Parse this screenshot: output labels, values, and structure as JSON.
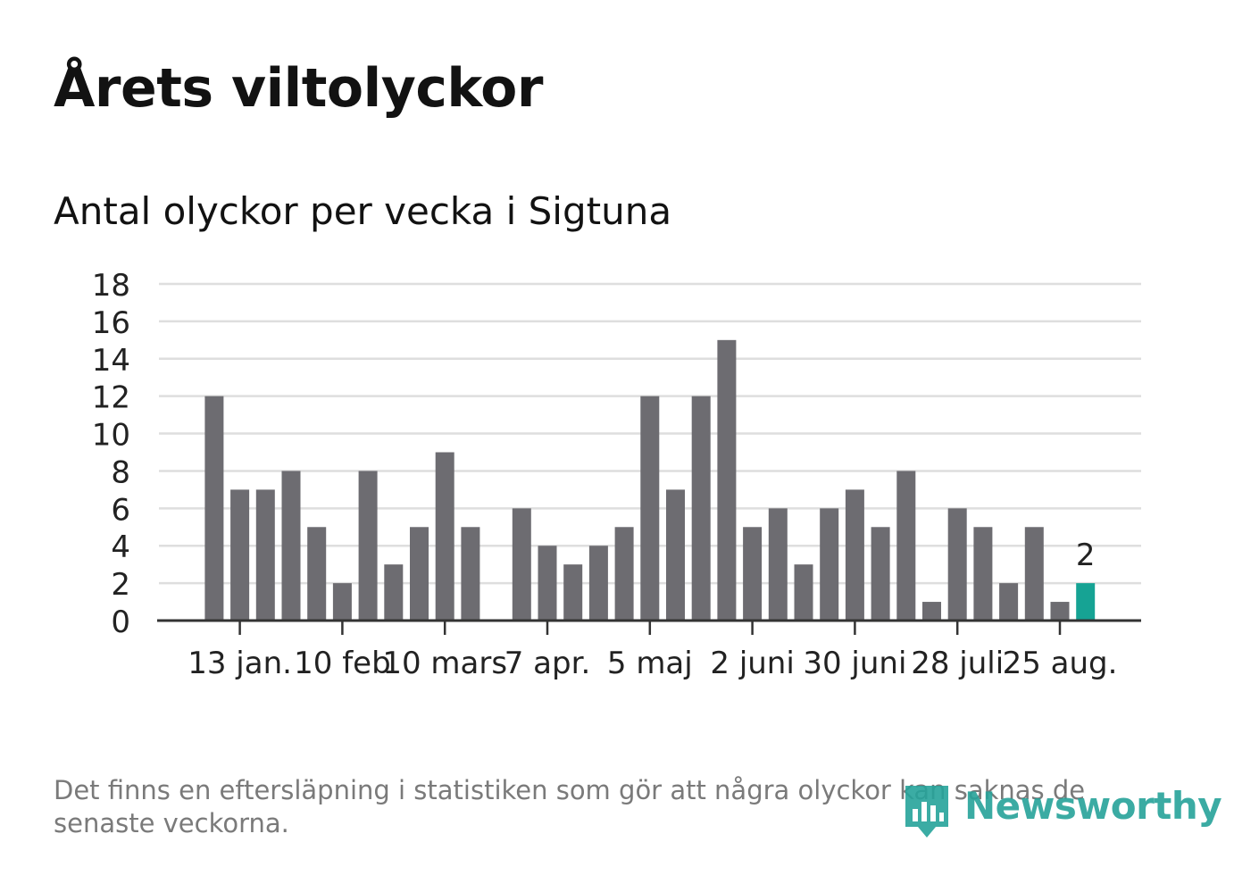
{
  "title": "Årets viltolyckor",
  "subtitle": "Antal olyckor per vecka i Sigtuna",
  "footnote": "Det finns en eftersläpning i statistiken som gör att några olyckor kan saknas de senaste veckorna.",
  "logo_text": "Newsworthy",
  "colors": {
    "bar": "#6d6c71",
    "highlight": "#16a394",
    "grid": "#dedede",
    "axis": "#333333",
    "text": "#222222",
    "brand": "#26a39a"
  },
  "chart_data": {
    "type": "bar",
    "title": "",
    "xlabel": "",
    "ylabel": "",
    "ylim": [
      0,
      18
    ],
    "yticks": [
      0,
      2,
      4,
      6,
      8,
      10,
      12,
      14,
      16,
      18
    ],
    "values": [
      null,
      null,
      12,
      7,
      7,
      8,
      5,
      2,
      8,
      3,
      5,
      9,
      5,
      0,
      6,
      4,
      3,
      4,
      5,
      12,
      7,
      12,
      15,
      5,
      6,
      3,
      6,
      7,
      5,
      8,
      1,
      6,
      5,
      2,
      5,
      1,
      2
    ],
    "highlight_index": 36,
    "highlight_label": "2",
    "xtick_labels": [
      "13 jan.",
      "10 feb",
      "10 mars",
      "7 apr.",
      "5 maj",
      "2 juni",
      "30 juni",
      "28 juli",
      "25 aug."
    ],
    "xtick_positions": [
      3,
      7,
      11,
      15,
      19,
      23,
      27,
      31,
      35
    ],
    "grid": true
  }
}
